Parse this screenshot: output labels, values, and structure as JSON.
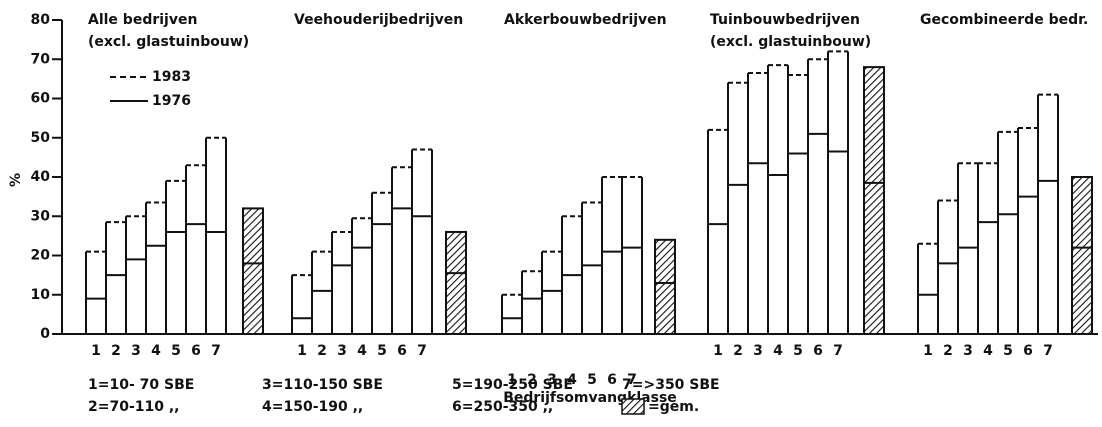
{
  "chart_data": {
    "type": "bar",
    "ylabel": "%",
    "ylim": [
      0,
      80
    ],
    "yticks": [
      0,
      10,
      20,
      30,
      40,
      50,
      60,
      70,
      80
    ],
    "xlabel": "Bedrijfsomvangklasse",
    "series": [
      {
        "name": "1983",
        "dashed": true,
        "color": "#000000"
      },
      {
        "name": "1976",
        "dashed": false,
        "color": "#000000"
      }
    ],
    "panels": [
      {
        "title": [
          "Alle bedrijven",
          "(excl. glastuinbouw)"
        ],
        "categories": [
          "1",
          "2",
          "3",
          "4",
          "5",
          "6",
          "7"
        ],
        "values": [
          [
            21,
            28.5,
            30,
            33.5,
            39,
            43,
            50
          ],
          [
            9,
            15,
            19,
            22.5,
            26,
            28,
            26
          ]
        ],
        "average": [
          32,
          18
        ]
      },
      {
        "title": [
          "Veehouderijbedrijven"
        ],
        "categories": [
          "1",
          "2",
          "3",
          "4",
          "5",
          "6",
          "7"
        ],
        "values": [
          [
            15,
            21,
            26,
            29.5,
            36,
            42.5,
            47
          ],
          [
            4,
            11,
            17.5,
            22,
            28,
            32,
            30
          ]
        ],
        "average": [
          26,
          15.5
        ]
      },
      {
        "title": [
          "Akkerbouwbedrijven"
        ],
        "categories": [
          "1",
          "2",
          "3",
          "4",
          "5",
          "6",
          "7"
        ],
        "values": [
          [
            10,
            16,
            21,
            30,
            33.5,
            40,
            40
          ],
          [
            4,
            9,
            11,
            15,
            17.5,
            21,
            22
          ]
        ],
        "average": [
          24,
          13
        ]
      },
      {
        "title": [
          "Tuinbouwbedrijven",
          "(excl. glastuinbouw)"
        ],
        "categories": [
          "1",
          "2",
          "3",
          "4",
          "5",
          "6",
          "7"
        ],
        "values": [
          [
            52,
            64,
            66.5,
            68.5,
            66,
            70,
            72
          ],
          [
            28,
            38,
            43.5,
            40.5,
            46,
            51,
            46.5
          ]
        ],
        "average": [
          68,
          38.5
        ]
      },
      {
        "title": [
          "Gecombineerde bedr."
        ],
        "categories": [
          "1",
          "2",
          "3",
          "4",
          "5",
          "6",
          "7"
        ],
        "values": [
          [
            23,
            34,
            43.5,
            43.5,
            51.5,
            52.5,
            61
          ],
          [
            10,
            18,
            22,
            28.5,
            30.5,
            35,
            39
          ]
        ],
        "average": [
          40,
          22
        ]
      }
    ],
    "key": [
      "1=10- 70 SBE",
      "2=70-110  ,,",
      "3=110-150 SBE",
      "4=150-190  ,,",
      "5=190-250 SBE",
      "6=250-350  ,,",
      "7=>350 SBE",
      "=gem."
    ]
  }
}
